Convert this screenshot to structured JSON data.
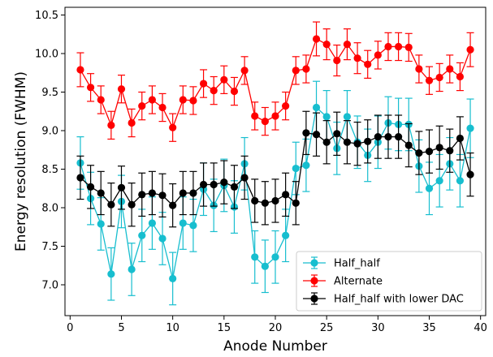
{
  "chart_data": {
    "type": "scatter",
    "xlabel": "Anode Number",
    "ylabel": "Energy resolution (FWHM)",
    "xlim": [
      -0.5,
      40.5
    ],
    "ylim": [
      6.6,
      10.6
    ],
    "xticks": [
      0,
      5,
      10,
      15,
      20,
      25,
      30,
      35,
      40
    ],
    "yticks": [
      7.0,
      7.5,
      8.0,
      8.5,
      9.0,
      9.5,
      10.0,
      10.5
    ],
    "grid": false,
    "legend_position": "lower-right",
    "series": [
      {
        "name": "Half_half",
        "color": "#17becf",
        "x": [
          1,
          2,
          3,
          4,
          5,
          6,
          7,
          8,
          9,
          10,
          11,
          12,
          13,
          14,
          15,
          16,
          17,
          18,
          19,
          20,
          21,
          22,
          23,
          24,
          25,
          26,
          27,
          28,
          29,
          30,
          31,
          32,
          33,
          34,
          35,
          36,
          37,
          38,
          39
        ],
        "y": [
          8.58,
          8.12,
          7.79,
          7.14,
          8.08,
          7.2,
          7.64,
          7.8,
          7.6,
          7.08,
          7.8,
          7.77,
          8.24,
          8.03,
          8.29,
          8.01,
          8.57,
          7.36,
          7.24,
          7.36,
          7.64,
          8.51,
          8.55,
          9.3,
          9.18,
          8.77,
          9.18,
          8.85,
          8.68,
          8.85,
          9.1,
          9.08,
          9.08,
          8.54,
          8.25,
          8.35,
          8.57,
          8.35,
          9.03
        ],
        "err": [
          0.34,
          0.34,
          0.34,
          0.34,
          0.34,
          0.34,
          0.34,
          0.34,
          0.34,
          0.34,
          0.34,
          0.34,
          0.34,
          0.34,
          0.34,
          0.34,
          0.34,
          0.34,
          0.34,
          0.34,
          0.34,
          0.34,
          0.34,
          0.34,
          0.34,
          0.34,
          0.34,
          0.34,
          0.34,
          0.34,
          0.34,
          0.34,
          0.34,
          0.34,
          0.34,
          0.34,
          0.34,
          0.34,
          0.38
        ]
      },
      {
        "name": "Alternate",
        "color": "#ff0000",
        "x": [
          1,
          2,
          3,
          4,
          5,
          6,
          7,
          8,
          9,
          10,
          11,
          12,
          13,
          14,
          15,
          16,
          17,
          18,
          19,
          20,
          21,
          22,
          23,
          24,
          25,
          26,
          27,
          28,
          29,
          30,
          31,
          32,
          33,
          34,
          35,
          36,
          37,
          38,
          39
        ],
        "y": [
          9.79,
          9.56,
          9.4,
          9.07,
          9.54,
          9.1,
          9.32,
          9.4,
          9.3,
          9.04,
          9.4,
          9.39,
          9.61,
          9.52,
          9.66,
          9.51,
          9.78,
          9.19,
          9.12,
          9.19,
          9.32,
          9.78,
          9.8,
          10.19,
          10.12,
          9.91,
          10.12,
          9.94,
          9.86,
          9.98,
          10.09,
          10.09,
          10.08,
          9.8,
          9.65,
          9.69,
          9.8,
          9.7,
          10.05
        ],
        "err": [
          0.22,
          0.18,
          0.18,
          0.18,
          0.18,
          0.18,
          0.18,
          0.18,
          0.18,
          0.18,
          0.18,
          0.18,
          0.18,
          0.18,
          0.18,
          0.18,
          0.18,
          0.18,
          0.18,
          0.18,
          0.18,
          0.18,
          0.18,
          0.22,
          0.2,
          0.2,
          0.2,
          0.2,
          0.18,
          0.18,
          0.18,
          0.18,
          0.18,
          0.18,
          0.18,
          0.18,
          0.18,
          0.18,
          0.22
        ]
      },
      {
        "name": "Half_half with lower DAC",
        "color": "#000000",
        "x": [
          1,
          2,
          3,
          4,
          5,
          6,
          7,
          8,
          9,
          10,
          11,
          12,
          13,
          14,
          15,
          16,
          17,
          18,
          19,
          20,
          21,
          22,
          23,
          24,
          25,
          26,
          27,
          28,
          29,
          30,
          31,
          32,
          33,
          34,
          35,
          36,
          37,
          38,
          39
        ],
        "y": [
          8.39,
          8.27,
          8.19,
          8.04,
          8.26,
          8.04,
          8.17,
          8.19,
          8.16,
          8.03,
          8.19,
          8.19,
          8.3,
          8.3,
          8.33,
          8.27,
          8.39,
          8.09,
          8.06,
          8.09,
          8.17,
          8.06,
          8.97,
          8.95,
          8.85,
          8.96,
          8.85,
          8.83,
          8.86,
          8.92,
          8.92,
          8.92,
          8.81,
          8.71,
          8.73,
          8.78,
          8.74,
          8.9,
          8.43
        ],
        "err": [
          0.28,
          0.28,
          0.28,
          0.28,
          0.28,
          0.28,
          0.28,
          0.28,
          0.28,
          0.28,
          0.28,
          0.28,
          0.28,
          0.28,
          0.28,
          0.28,
          0.28,
          0.28,
          0.28,
          0.28,
          0.28,
          0.28,
          0.28,
          0.28,
          0.28,
          0.28,
          0.28,
          0.28,
          0.28,
          0.28,
          0.28,
          0.28,
          0.28,
          0.28,
          0.28,
          0.28,
          0.28,
          0.28,
          0.28
        ]
      }
    ]
  }
}
